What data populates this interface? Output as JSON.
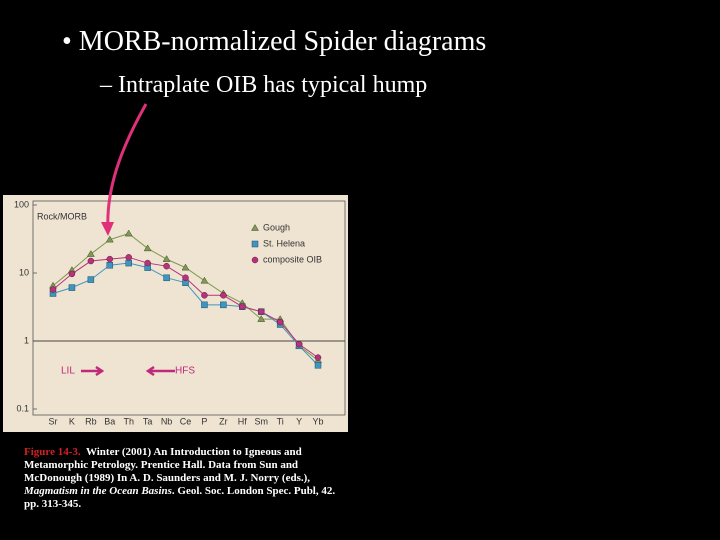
{
  "slide": {
    "bullet": "• MORB-normalized Spider diagrams",
    "sub_bullet": "– Intraplate OIB has typical hump",
    "caption": {
      "label": "Figure 14-3.",
      "text_before": "Winter (2001) An Introduction to Igneous and Metamorphic Petrology. Prentice Hall. Data from Sun and McDonough (1989) In A. D. Saunders and M. J. Norry (eds.), ",
      "italic": "Magmatism in the Ocean Basins",
      "text_after": ". Geol. Soc. London Spec. Publ, 42. pp. 313-345."
    }
  },
  "chart_data": {
    "type": "line",
    "ylabel": "Rock/MORB",
    "categories": [
      "Sr",
      "K",
      "Rb",
      "Ba",
      "Th",
      "Ta",
      "Nb",
      "Ce",
      "P",
      "Zr",
      "Hf",
      "Sm",
      "Ti",
      "Y",
      "Yb"
    ],
    "series": [
      {
        "name": "Gough",
        "color": "#7f9a52",
        "marker": "triangle",
        "values": [
          6.5,
          11,
          19,
          31,
          38,
          23,
          16,
          12,
          7.7,
          5,
          3.6,
          2.1,
          2.1,
          0.85,
          0.52
        ]
      },
      {
        "name": "St. Helena",
        "color": "#3f95bf",
        "marker": "square",
        "values": [
          5,
          6.1,
          8,
          13,
          14,
          12,
          8.5,
          7.2,
          3.4,
          3.4,
          3.2,
          2.7,
          1.75,
          0.85,
          0.44
        ]
      },
      {
        "name": "composite OIB",
        "color": "#b8327a",
        "marker": "circle",
        "values": [
          5.7,
          9.7,
          15,
          16,
          17,
          14,
          12.6,
          8.5,
          4.7,
          4.7,
          3.2,
          2.7,
          1.9,
          0.9,
          0.57
        ]
      }
    ],
    "log_scale": true,
    "ylim": [
      0.1,
      100
    ],
    "yticks": [
      0.1,
      1,
      10,
      100
    ],
    "hline": 1,
    "legend": "upper right",
    "annotations": [
      "LIL",
      "HFS"
    ]
  }
}
